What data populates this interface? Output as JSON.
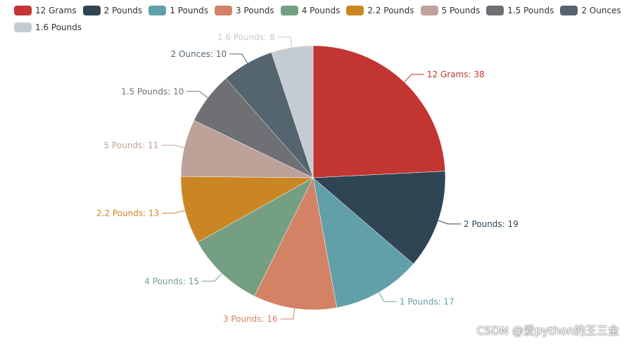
{
  "chart_data": {
    "type": "pie",
    "categories": [
      "12 Grams",
      "2 Pounds",
      "1 Pounds",
      "3 Pounds",
      "4 Pounds",
      "2.2 Pounds",
      "5 Pounds",
      "1.5 Pounds",
      "2 Ounces",
      "1.6 Pounds"
    ],
    "values": [
      38,
      19,
      17,
      16,
      15,
      13,
      11,
      10,
      10,
      8
    ],
    "colors": [
      "#c23531",
      "#2f4554",
      "#61a0a8",
      "#d48265",
      "#749f83",
      "#ca8622",
      "#bda29a",
      "#6e7074",
      "#546570",
      "#c4ccd3"
    ],
    "labels": [
      "12 Grams: 38",
      "2 Pounds: 19",
      "1 Pounds: 17",
      "3 Pounds: 16",
      "4 Pounds: 15",
      "2.2 Pounds: 13",
      "5 Pounds: 11",
      "1.5 Pounds: 10",
      "2 Ounces: 10",
      "1.6 Pounds: 8"
    ],
    "start_angle_deg": 90,
    "direction": "clockwise",
    "legend_position": "top-left"
  },
  "watermark": "CSDN @爱python的王三金"
}
